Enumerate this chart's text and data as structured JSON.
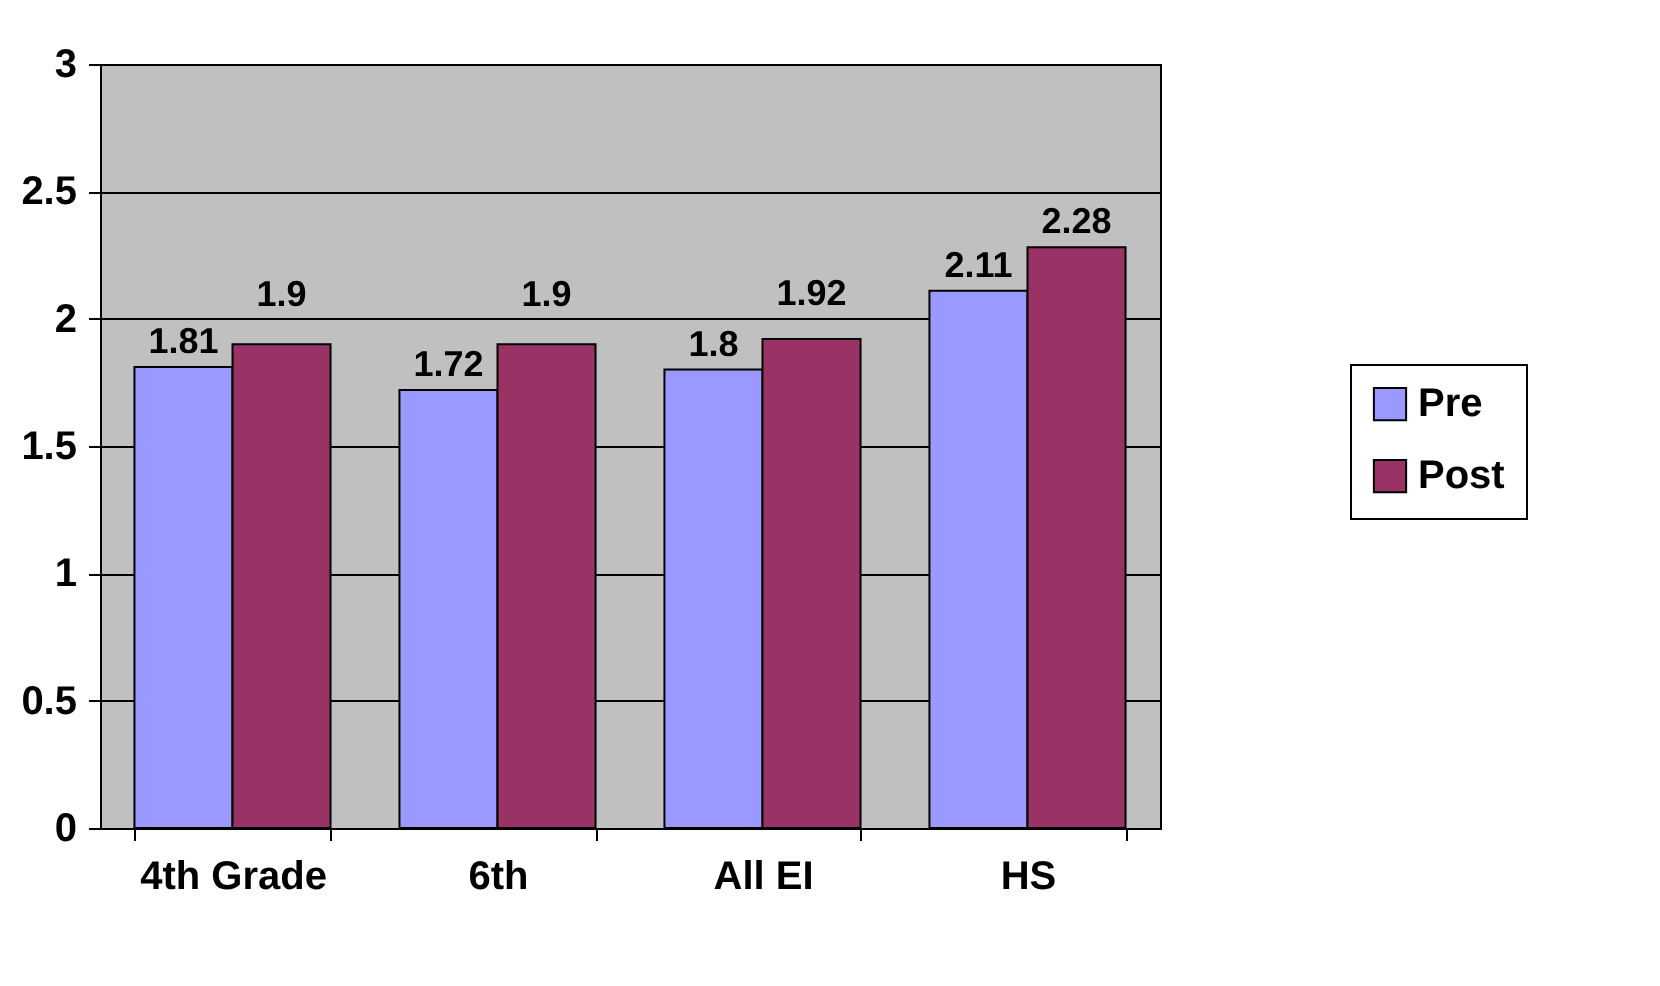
{
  "chart_data": {
    "type": "bar",
    "categories": [
      "4th Grade",
      "6th",
      "All EI",
      "HS"
    ],
    "series": [
      {
        "name": "Pre",
        "color": "#9999ff",
        "values": [
          1.81,
          1.72,
          1.8,
          2.11
        ]
      },
      {
        "name": "Post",
        "color": "#993366",
        "values": [
          1.9,
          1.9,
          1.92,
          2.28
        ]
      }
    ],
    "ylim": [
      0,
      3
    ],
    "yticks": [
      0,
      0.5,
      1,
      1.5,
      2,
      2.5,
      3
    ],
    "grid": "y",
    "legend": "right",
    "data_labels": true
  }
}
